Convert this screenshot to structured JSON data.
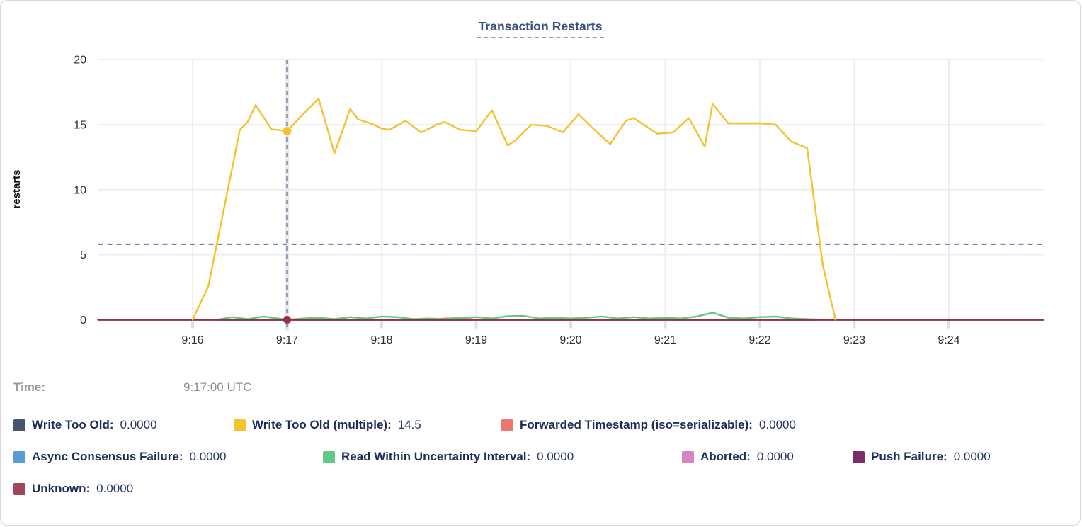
{
  "window": {
    "title": "Transaction Restarts"
  },
  "chart_data": {
    "type": "line",
    "title": "Transaction Restarts",
    "xlabel": "",
    "ylabel": "restarts",
    "ylim": [
      0,
      20
    ],
    "yticks": [
      0,
      5,
      10,
      15,
      20
    ],
    "x_domain_minutes": [
      0,
      10
    ],
    "x_base_time": "9:15",
    "x_ticks": [
      {
        "t": 1,
        "label": "9:16"
      },
      {
        "t": 2,
        "label": "9:17"
      },
      {
        "t": 3,
        "label": "9:18"
      },
      {
        "t": 4,
        "label": "9:19"
      },
      {
        "t": 5,
        "label": "9:20"
      },
      {
        "t": 6,
        "label": "9:21"
      },
      {
        "t": 7,
        "label": "9:22"
      },
      {
        "t": 8,
        "label": "9:23"
      },
      {
        "t": 9,
        "label": "9:24"
      }
    ],
    "grid": true,
    "legend_position": "bottom",
    "threshold_line": {
      "value": 5.8,
      "style": "dashed",
      "color": "#5e7ba6"
    },
    "crosshair": {
      "t": 2,
      "time_label": "9:17:00 UTC",
      "selected_values": [
        {
          "series": "Write Too Old (multiple)",
          "value": 14.5
        },
        {
          "series": "Unknown",
          "value": 0
        }
      ]
    },
    "series": [
      {
        "name": "Write Too Old",
        "color": "#47566b",
        "points": [
          [
            0,
            0
          ],
          [
            10,
            0
          ]
        ]
      },
      {
        "name": "Async Consensus Failure",
        "color": "#5c9bd5",
        "points": [
          [
            0,
            0
          ],
          [
            10,
            0
          ]
        ]
      },
      {
        "name": "Aborted",
        "color": "#d783be",
        "points": [
          [
            0,
            0
          ],
          [
            10,
            0
          ]
        ]
      },
      {
        "name": "Push Failure",
        "color": "#7d2d67",
        "points": [
          [
            0,
            0
          ],
          [
            10,
            0
          ]
        ]
      },
      {
        "name": "Forwarded Timestamp (iso=serializable)",
        "color": "#e87870",
        "points": [
          [
            0,
            0
          ],
          [
            3.5,
            0
          ],
          [
            3.667,
            0.1
          ],
          [
            3.833,
            0.12
          ],
          [
            4.0,
            0
          ],
          [
            10,
            0
          ]
        ]
      },
      {
        "name": "Read Within Uncertainty Interval",
        "color": "#5fc97e",
        "points": [
          [
            0,
            0
          ],
          [
            1.25,
            0
          ],
          [
            1.417,
            0.2
          ],
          [
            1.583,
            0.05
          ],
          [
            1.75,
            0.25
          ],
          [
            1.917,
            0.08
          ],
          [
            2.0,
            0
          ],
          [
            2.167,
            0.1
          ],
          [
            2.333,
            0.15
          ],
          [
            2.5,
            0.05
          ],
          [
            2.667,
            0.2
          ],
          [
            2.833,
            0.1
          ],
          [
            3.0,
            0.25
          ],
          [
            3.167,
            0.2
          ],
          [
            3.333,
            0.05
          ],
          [
            3.5,
            0.1
          ],
          [
            3.667,
            0.05
          ],
          [
            3.833,
            0.15
          ],
          [
            4.0,
            0.2
          ],
          [
            4.167,
            0.1
          ],
          [
            4.333,
            0.28
          ],
          [
            4.5,
            0.3
          ],
          [
            4.667,
            0.1
          ],
          [
            4.833,
            0.15
          ],
          [
            5.0,
            0.1
          ],
          [
            5.167,
            0.15
          ],
          [
            5.333,
            0.25
          ],
          [
            5.5,
            0.1
          ],
          [
            5.667,
            0.2
          ],
          [
            5.833,
            0.1
          ],
          [
            6.0,
            0.15
          ],
          [
            6.167,
            0.1
          ],
          [
            6.333,
            0.25
          ],
          [
            6.5,
            0.55
          ],
          [
            6.667,
            0.15
          ],
          [
            6.833,
            0.1
          ],
          [
            7.0,
            0.2
          ],
          [
            7.167,
            0.25
          ],
          [
            7.333,
            0.1
          ],
          [
            7.5,
            0.05
          ],
          [
            7.667,
            0
          ],
          [
            10,
            0
          ]
        ]
      },
      {
        "name": "Unknown",
        "color": "#96304a",
        "points": [
          [
            0,
            0
          ],
          [
            10,
            0
          ]
        ]
      },
      {
        "name": "Write Too Old (multiple)",
        "color": "#f5c12d",
        "points": [
          [
            1.0,
            0
          ],
          [
            1.167,
            2.6
          ],
          [
            1.333,
            8.6
          ],
          [
            1.5,
            14.6
          ],
          [
            1.583,
            15.2
          ],
          [
            1.667,
            16.5
          ],
          [
            1.833,
            14.65
          ],
          [
            2.0,
            14.5
          ],
          [
            2.167,
            15.8
          ],
          [
            2.333,
            17.0
          ],
          [
            2.5,
            12.8
          ],
          [
            2.667,
            16.2
          ],
          [
            2.75,
            15.4
          ],
          [
            2.917,
            15.0
          ],
          [
            3.0,
            14.7
          ],
          [
            3.083,
            14.6
          ],
          [
            3.25,
            15.3
          ],
          [
            3.417,
            14.4
          ],
          [
            3.583,
            15.0
          ],
          [
            3.667,
            15.2
          ],
          [
            3.833,
            14.6
          ],
          [
            4.0,
            14.5
          ],
          [
            4.167,
            16.1
          ],
          [
            4.333,
            13.4
          ],
          [
            4.417,
            13.8
          ],
          [
            4.583,
            15.0
          ],
          [
            4.75,
            14.9
          ],
          [
            4.917,
            14.4
          ],
          [
            5.083,
            15.8
          ],
          [
            5.25,
            14.6
          ],
          [
            5.417,
            13.5
          ],
          [
            5.583,
            15.3
          ],
          [
            5.667,
            15.5
          ],
          [
            5.833,
            14.7
          ],
          [
            5.917,
            14.3
          ],
          [
            6.083,
            14.4
          ],
          [
            6.25,
            15.5
          ],
          [
            6.417,
            13.3
          ],
          [
            6.5,
            16.6
          ],
          [
            6.667,
            15.1
          ],
          [
            6.833,
            15.1
          ],
          [
            7.0,
            15.1
          ],
          [
            7.167,
            15.0
          ],
          [
            7.333,
            13.7
          ],
          [
            7.5,
            13.2
          ],
          [
            7.667,
            4.2
          ],
          [
            7.8,
            0
          ]
        ]
      }
    ],
    "markers": [
      {
        "t": 2,
        "value": 14.5,
        "color": "#f5c12d",
        "r": 6
      },
      {
        "t": 2,
        "value": 0,
        "color": "#96304a",
        "r": 5.5
      }
    ]
  },
  "tooltip": {
    "time_label": "Time:",
    "time_value": "9:17:00 UTC"
  },
  "legend": {
    "rows": [
      [
        {
          "label": "Write Too Old:",
          "value": "0.0000",
          "color": "#47566b"
        },
        {
          "label": "Write Too Old (multiple):",
          "value": "14.5",
          "color": "#f5c32c"
        },
        {
          "label": "Forwarded Timestamp (iso=serializable):",
          "value": "0.0000",
          "color": "#e87870"
        }
      ],
      [
        {
          "label": "Async Consensus Failure:",
          "value": "0.0000",
          "color": "#5c9bd5"
        },
        {
          "label": "Read Within Uncertainty Interval:",
          "value": "0.0000",
          "color": "#62cb82"
        },
        {
          "label": "Aborted:",
          "value": "0.0000",
          "color": "#d783be"
        },
        {
          "label": "Push Failure:",
          "value": "0.0000",
          "color": "#7d2d67"
        }
      ],
      [
        {
          "label": "Unknown:",
          "value": "0.0000",
          "color": "#a3455c"
        }
      ]
    ]
  }
}
